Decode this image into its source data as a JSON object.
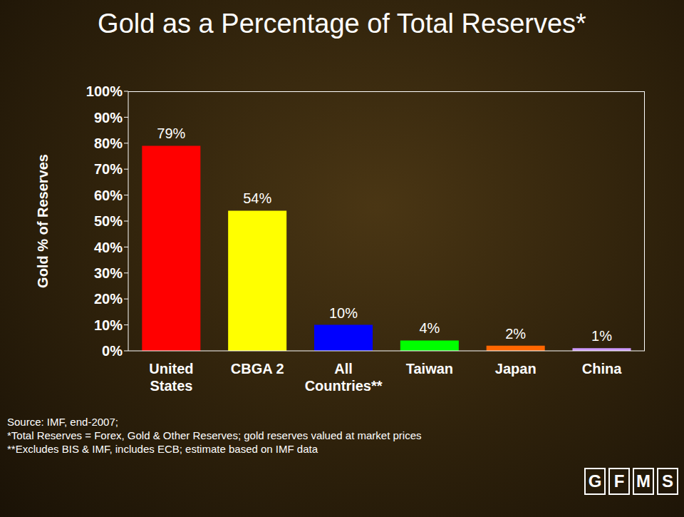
{
  "chart_data": {
    "type": "bar",
    "title": "Gold as a Percentage of Total Reserves*",
    "ylabel": "Gold % of Reserves",
    "categories": [
      "United States",
      "CBGA 2",
      "All Countries**",
      "Taiwan",
      "Japan",
      "China"
    ],
    "values": [
      79,
      54,
      10,
      4,
      2,
      1
    ],
    "value_labels": [
      "79%",
      "54%",
      "10%",
      "4%",
      "2%",
      "1%"
    ],
    "colors": [
      "#ff0000",
      "#ffff00",
      "#0000ff",
      "#00ff00",
      "#ff6600",
      "#cc99ff"
    ],
    "ylim": [
      0,
      100
    ],
    "yticks": [
      {
        "value": 0,
        "label": "0%"
      },
      {
        "value": 10,
        "label": "10%"
      },
      {
        "value": 20,
        "label": "20%"
      },
      {
        "value": 30,
        "label": "30%"
      },
      {
        "value": 40,
        "label": "40%"
      },
      {
        "value": 50,
        "label": "50%"
      },
      {
        "value": 60,
        "label": "60%"
      },
      {
        "value": 70,
        "label": "70%"
      },
      {
        "value": 80,
        "label": "80%"
      },
      {
        "value": 90,
        "label": "90%"
      },
      {
        "value": 100,
        "label": "100%"
      }
    ],
    "data_labels": true,
    "grid": false,
    "annotations": [
      "Source: IMF, end-2007;",
      "*Total Reserves = Forex, Gold & Other Reserves; gold reserves valued at market prices",
      "**Excludes BIS & IMF, includes ECB; estimate based on IMF data"
    ]
  },
  "logo": "GFMS"
}
